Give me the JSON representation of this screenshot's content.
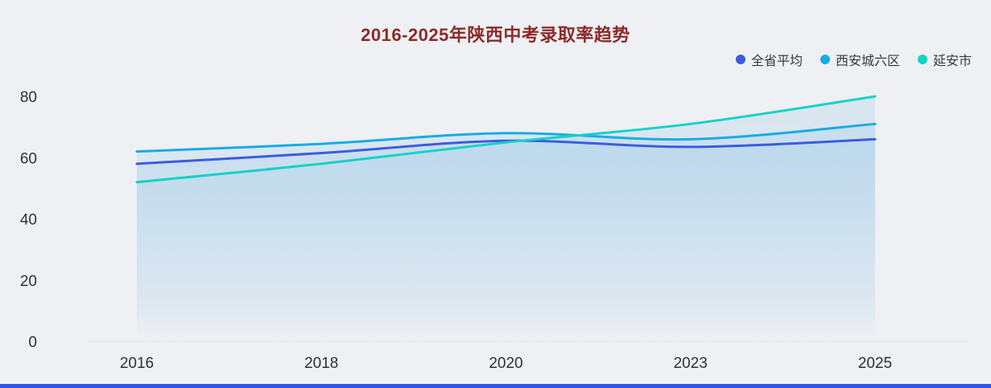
{
  "page": {
    "background_color": "#eef0f3",
    "footer_bar_color": "#2f54eb"
  },
  "chart_data": {
    "type": "line",
    "title": "2016-2025年陕西中考录取率趋势",
    "title_color": "#8c2a2a",
    "categories": [
      "2016",
      "2018",
      "2020",
      "2023",
      "2025"
    ],
    "series": [
      {
        "name": "全省平均",
        "color": "#3b5ce0",
        "values": [
          58,
          61.5,
          65.5,
          63.5,
          66
        ]
      },
      {
        "name": "西安城六区",
        "color": "#17ace4",
        "values": [
          62,
          64.5,
          68,
          66,
          71
        ]
      },
      {
        "name": "延安市",
        "color": "#14d2c8",
        "values": [
          52,
          58,
          65,
          71,
          80
        ]
      }
    ],
    "ylim": [
      0,
      80
    ],
    "yticks": [
      0,
      20,
      40,
      60,
      80
    ],
    "legend_position": "top-right",
    "grid": false,
    "smooth": true,
    "area_fill": true,
    "area_color": "#9cc9e8",
    "axis_label_color": "#2f2f2f"
  }
}
